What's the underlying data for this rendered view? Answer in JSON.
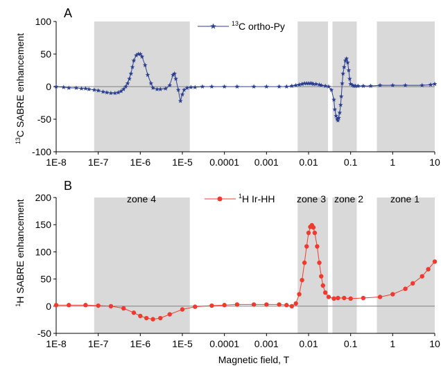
{
  "colors": {
    "panel_a_series": "#2a3e91",
    "panel_b_series": "#f03a2e",
    "zone_shading": "#d9d9d9",
    "zero_line": "#808080"
  },
  "x_axis": {
    "label": "Magnetic field, T",
    "scale": "log",
    "range": [
      1e-08,
      10
    ],
    "tick_values": [
      1e-08,
      1e-07,
      1e-06,
      1e-05,
      0.0001,
      0.001,
      0.01,
      0.1,
      1,
      10
    ],
    "tick_labels": [
      "1E-8",
      "1E-7",
      "1E-6",
      "1E-5",
      "0.0001",
      "0.001",
      "0.01",
      "0.1",
      "1",
      "10"
    ]
  },
  "shaded_zones": [
    {
      "name": "zone 4",
      "from": 8e-08,
      "to": 1.5e-05
    },
    {
      "name": "zone 3",
      "from": 0.0055,
      "to": 0.029
    },
    {
      "name": "zone 2",
      "from": 0.037,
      "to": 0.14
    },
    {
      "name": "zone 1",
      "from": 0.42,
      "to": 10
    }
  ],
  "chart_data": [
    {
      "type": "line",
      "panel": "A",
      "ylabel_sup": "13",
      "ylabel_main": "C SABRE enhancement",
      "ylim": [
        -100,
        100
      ],
      "y_ticks": [
        -100,
        -50,
        0,
        50,
        100
      ],
      "grid": false,
      "legend": {
        "placement": "top-center",
        "entries": [
          {
            "sup": "13",
            "text": "C ortho-Py"
          }
        ]
      },
      "series": [
        {
          "name": "13C ortho-Py",
          "marker": "star",
          "x": [
            1e-08,
            1.5e-08,
            2e-08,
            3e-08,
            4e-08,
            5e-08,
            6e-08,
            8e-08,
            1e-07,
            1.3e-07,
            1.6e-07,
            2e-07,
            2.5e-07,
            3e-07,
            3.5e-07,
            4e-07,
            4.5e-07,
            5e-07,
            5.5e-07,
            6e-07,
            6.5e-07,
            7e-07,
            8e-07,
            9e-07,
            1e-06,
            1.1e-06,
            1.3e-06,
            1.5e-06,
            1.8e-06,
            2e-06,
            2.5e-06,
            3e-06,
            4e-06,
            5e-06,
            6e-06,
            6.5e-06,
            7e-06,
            8e-06,
            9e-06,
            1e-05,
            1.1e-05,
            1.3e-05,
            1.6e-05,
            2e-05,
            3e-05,
            5e-05,
            0.0001,
            0.0002,
            0.0005,
            0.001,
            0.002,
            0.003,
            0.004,
            0.005,
            0.006,
            0.007,
            0.008,
            0.009,
            0.01,
            0.011,
            0.012,
            0.013,
            0.015,
            0.018,
            0.02,
            0.025,
            0.03,
            0.035,
            0.04,
            0.042,
            0.045,
            0.048,
            0.05,
            0.052,
            0.055,
            0.058,
            0.06,
            0.063,
            0.066,
            0.07,
            0.075,
            0.08,
            0.085,
            0.09,
            0.095,
            0.1,
            0.11,
            0.12,
            0.13,
            0.15,
            0.2,
            0.3,
            0.5,
            1,
            2,
            5,
            8,
            10
          ],
          "values": [
            0,
            -1,
            -2,
            -2,
            -3,
            -3,
            -4,
            -5,
            -6,
            -8,
            -9,
            -10,
            -10,
            -9,
            -7,
            -4,
            0,
            5,
            12,
            20,
            30,
            40,
            48,
            50,
            50,
            46,
            33,
            18,
            5,
            -2,
            -4,
            -4,
            -3,
            2,
            18,
            20,
            12,
            -5,
            -22,
            -12,
            -5,
            -2,
            -1,
            -1,
            0,
            0,
            0,
            0,
            0,
            0,
            0,
            0,
            1,
            2,
            3,
            4,
            5,
            5,
            5,
            5,
            5,
            4,
            4,
            3,
            2,
            1,
            0,
            -5,
            -20,
            -35,
            -45,
            -50,
            -52,
            -48,
            -40,
            -28,
            -15,
            5,
            20,
            30,
            40,
            43,
            37,
            25,
            12,
            4,
            2,
            1,
            1,
            1,
            1,
            1,
            2,
            2,
            2,
            2,
            3,
            4
          ]
        }
      ]
    },
    {
      "type": "line",
      "panel": "B",
      "ylabel_sup": "1",
      "ylabel_main": "H SABRE enhancement",
      "xlabel": "Magnetic field, T",
      "ylim": [
        -50,
        200
      ],
      "y_ticks": [
        -50,
        0,
        50,
        100,
        150,
        200
      ],
      "grid": false,
      "legend": {
        "placement": "top-center",
        "entries": [
          {
            "sup": "1",
            "text": "H Ir-HH"
          }
        ]
      },
      "series": [
        {
          "name": "1H Ir-HH",
          "marker": "circle",
          "x": [
            1e-08,
            2e-08,
            5e-08,
            1e-07,
            2e-07,
            4e-07,
            7e-07,
            1e-06,
            1.4e-06,
            2e-06,
            3e-06,
            5e-06,
            1e-05,
            2e-05,
            5e-05,
            0.0001,
            0.0002,
            0.0005,
            0.001,
            0.002,
            0.003,
            0.004,
            0.005,
            0.006,
            0.007,
            0.008,
            0.009,
            0.01,
            0.011,
            0.012,
            0.013,
            0.014,
            0.016,
            0.018,
            0.02,
            0.022,
            0.025,
            0.03,
            0.04,
            0.05,
            0.07,
            0.1,
            0.2,
            0.5,
            1,
            2,
            3,
            5,
            7,
            10
          ],
          "values": [
            2,
            2,
            2,
            1,
            0,
            -4,
            -12,
            -18,
            -22,
            -24,
            -22,
            -15,
            -6,
            -1,
            1,
            2,
            3,
            3,
            3,
            3,
            2,
            0,
            5,
            22,
            48,
            80,
            110,
            135,
            146,
            149,
            145,
            135,
            110,
            80,
            55,
            38,
            25,
            17,
            14,
            15,
            15,
            14,
            15,
            17,
            22,
            32,
            42,
            55,
            68,
            82
          ]
        }
      ]
    }
  ]
}
